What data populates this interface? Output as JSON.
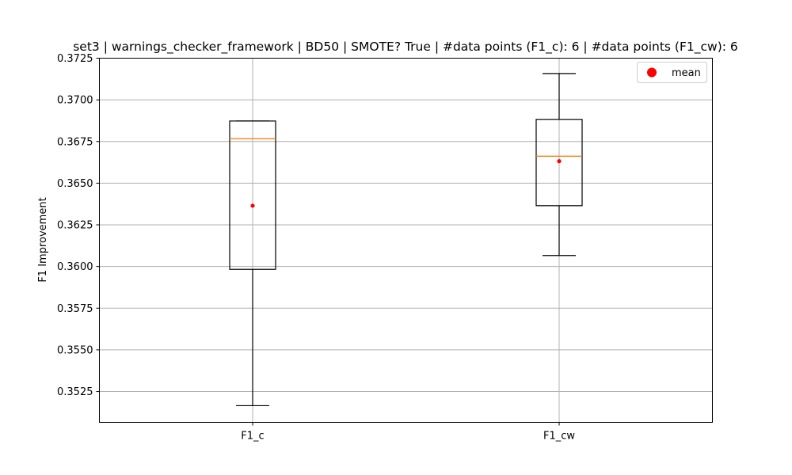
{
  "chart_data": {
    "type": "box",
    "title": "set3 | warnings_checker_framework | BD50 | SMOTE? True | #data points (F1_c): 6 | #data points (F1_cw): 6",
    "xlabel": "",
    "ylabel": "F1 Improvement",
    "ylim": [
      0.35065,
      0.3725
    ],
    "yticks": [
      0.3525,
      0.355,
      0.3575,
      0.36,
      0.3625,
      0.365,
      0.3675,
      0.37,
      0.3725
    ],
    "grid": true,
    "legend": {
      "placement": "top-right",
      "entries": [
        {
          "label": "mean",
          "color": "#ff0000",
          "marker": "circle"
        }
      ]
    },
    "categories": [
      "F1_c",
      "F1_cw"
    ],
    "boxes": [
      {
        "category": "F1_c",
        "whisker_low": 0.35165,
        "q1": 0.35983,
        "median": 0.36767,
        "q3": 0.36873,
        "whisker_high": 0.36873,
        "mean": 0.36365
      },
      {
        "category": "F1_cw",
        "whisker_low": 0.36066,
        "q1": 0.36365,
        "median": 0.36662,
        "q3": 0.36883,
        "whisker_high": 0.37158,
        "mean": 0.36632
      }
    ],
    "colors": {
      "box": "#000000",
      "median": "#ff7f0e",
      "mean": "#ff0000",
      "grid": "#b0b0b0"
    }
  }
}
